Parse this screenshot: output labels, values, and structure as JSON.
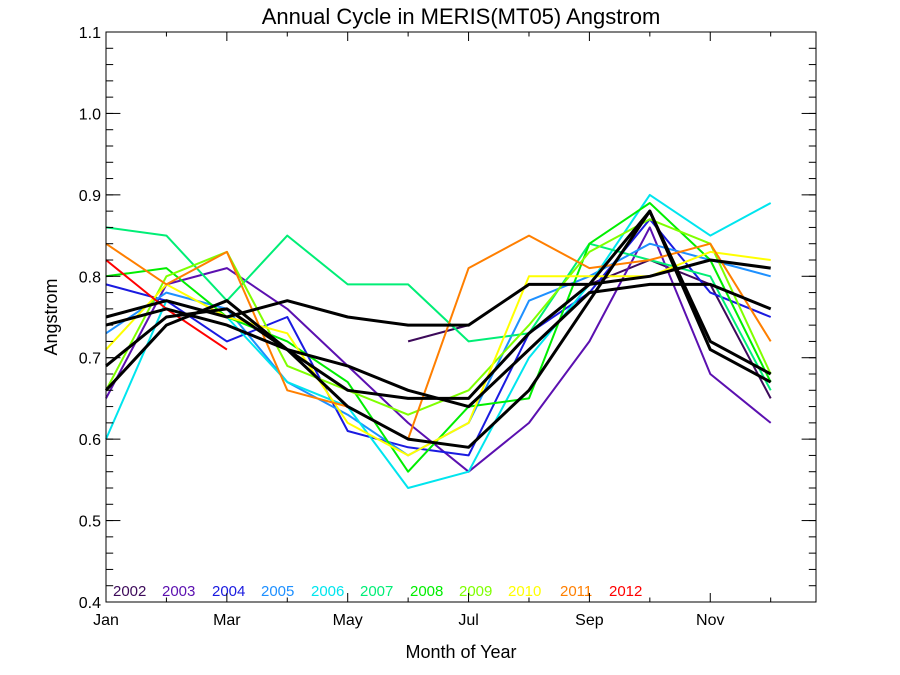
{
  "chart_data": {
    "type": "line",
    "title": "Annual Cycle in MERIS(MT05) Angstrom",
    "xlabel": "Month of Year",
    "ylabel": "Angstrom",
    "xlim": [
      1,
      12.75
    ],
    "ylim": [
      0.4,
      1.1
    ],
    "x_ticks": [
      {
        "x": 1,
        "label": "Jan"
      },
      {
        "x": 3,
        "label": "Mar"
      },
      {
        "x": 5,
        "label": "May"
      },
      {
        "x": 7,
        "label": "Jul"
      },
      {
        "x": 9,
        "label": "Sep"
      },
      {
        "x": 11,
        "label": "Nov"
      }
    ],
    "y_ticks": [
      {
        "y": 0.4,
        "label": "0.4"
      },
      {
        "y": 0.5,
        "label": "0.5"
      },
      {
        "y": 0.6,
        "label": "0.6"
      },
      {
        "y": 0.7,
        "label": "0.7"
      },
      {
        "y": 0.8,
        "label": "0.8"
      },
      {
        "y": 0.9,
        "label": "0.9"
      },
      {
        "y": 1.0,
        "label": "1.0"
      },
      {
        "y": 1.1,
        "label": "1.1"
      }
    ],
    "x_minor_ticks": [
      2,
      4,
      6,
      8,
      10,
      12
    ],
    "y_minor_step": 0.02,
    "grid": false,
    "legend_placement": "bottom-left",
    "x": [
      1,
      2,
      3,
      4,
      5,
      6,
      7,
      8,
      9,
      10,
      11,
      12
    ],
    "series": [
      {
        "name": "2002",
        "color": "#3d0a5a",
        "values": [
          null,
          null,
          null,
          null,
          null,
          0.72,
          0.74,
          0.79,
          0.79,
          0.82,
          0.79,
          0.65
        ]
      },
      {
        "name": "2003",
        "color": "#5b10b0",
        "values": [
          0.65,
          0.79,
          0.81,
          0.76,
          0.69,
          0.62,
          0.56,
          0.62,
          0.72,
          0.86,
          0.68,
          0.62
        ]
      },
      {
        "name": "2004",
        "color": "#1a1ae0",
        "values": [
          0.79,
          0.77,
          0.72,
          0.75,
          0.61,
          0.59,
          0.58,
          0.73,
          0.78,
          0.87,
          0.78,
          0.75
        ]
      },
      {
        "name": "2005",
        "color": "#1e90ff",
        "values": [
          0.73,
          0.78,
          0.76,
          0.67,
          0.63,
          0.58,
          0.62,
          0.77,
          0.8,
          0.84,
          0.82,
          0.8
        ]
      },
      {
        "name": "2006",
        "color": "#00e5ee",
        "values": [
          0.6,
          0.77,
          0.75,
          0.67,
          0.64,
          0.54,
          0.56,
          0.7,
          0.79,
          0.9,
          0.85,
          0.89
        ]
      },
      {
        "name": "2007",
        "color": "#00ee76",
        "values": [
          0.86,
          0.85,
          0.77,
          0.85,
          0.79,
          0.79,
          0.72,
          0.73,
          0.84,
          0.82,
          0.8,
          0.66
        ]
      },
      {
        "name": "2008",
        "color": "#00ee00",
        "values": [
          0.8,
          0.81,
          0.75,
          0.72,
          0.67,
          0.56,
          0.64,
          0.65,
          0.84,
          0.89,
          0.82,
          0.67
        ]
      },
      {
        "name": "2009",
        "color": "#7fff00",
        "values": [
          0.66,
          0.8,
          0.83,
          0.69,
          0.66,
          0.63,
          0.66,
          0.74,
          0.83,
          0.87,
          0.84,
          0.68
        ]
      },
      {
        "name": "2010",
        "color": "#ffff00",
        "values": [
          0.71,
          0.79,
          0.75,
          0.73,
          0.62,
          0.58,
          0.62,
          0.8,
          0.8,
          0.8,
          0.83,
          0.82
        ]
      },
      {
        "name": "2011",
        "color": "#ff7f00",
        "values": [
          0.84,
          0.79,
          0.83,
          0.66,
          0.64,
          0.6,
          0.81,
          0.85,
          0.81,
          0.82,
          0.84,
          0.72
        ]
      },
      {
        "name": "2012",
        "color": "#ff0000",
        "values": [
          0.82,
          0.76,
          0.71,
          null,
          null,
          null,
          null,
          null,
          null,
          null,
          null,
          null
        ]
      },
      {
        "color": "#000000",
        "values": [
          0.75,
          0.77,
          0.75,
          0.77,
          0.75,
          0.74,
          0.74,
          0.79,
          0.79,
          0.8,
          0.82,
          0.81
        ]
      },
      {
        "color": "#000000",
        "values": [
          0.69,
          0.75,
          0.76,
          0.71,
          0.66,
          0.65,
          0.65,
          0.73,
          0.79,
          0.88,
          0.72,
          0.68
        ]
      },
      {
        "color": "#000000",
        "values": [
          0.66,
          0.74,
          0.77,
          0.71,
          0.64,
          0.6,
          0.59,
          0.66,
          0.77,
          0.88,
          0.71,
          0.67
        ]
      },
      {
        "color": "#000000",
        "values": [
          0.74,
          0.76,
          0.74,
          0.71,
          0.69,
          0.66,
          0.64,
          0.71,
          0.78,
          0.79,
          0.79,
          0.76
        ]
      }
    ],
    "legend": [
      {
        "label": "2002",
        "color": "#3d0a5a"
      },
      {
        "label": "2003",
        "color": "#5b10b0"
      },
      {
        "label": "2004",
        "color": "#1a1ae0"
      },
      {
        "label": "2005",
        "color": "#1e90ff"
      },
      {
        "label": "2006",
        "color": "#00e5ee"
      },
      {
        "label": "2007",
        "color": "#00ee76"
      },
      {
        "label": "2008",
        "color": "#00ee00"
      },
      {
        "label": "2009",
        "color": "#7fff00"
      },
      {
        "label": "2010",
        "color": "#ffff00"
      },
      {
        "label": "2011",
        "color": "#ff7f00"
      },
      {
        "label": "2012",
        "color": "#ff0000"
      }
    ]
  }
}
